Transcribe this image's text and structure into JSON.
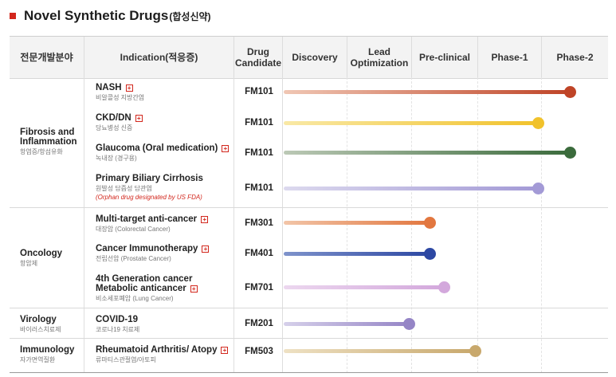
{
  "page": {
    "title": "Novel Synthetic Drugs",
    "title_ko": "(합성신약)"
  },
  "header": {
    "area": "전문개발분야",
    "indication": "Indication(적응증)",
    "candidate_line1": "Drug",
    "candidate_line2": "Candidate",
    "discovery": "Discovery",
    "lead_line1": "Lead",
    "lead_line2": "Optimization",
    "preclinical": "Pre-clinical",
    "phase1": "Phase-1",
    "phase2": "Phase-2"
  },
  "areas": [
    {
      "en_line1": "Fibrosis and",
      "en_line2": "Inflammation",
      "ko": "항염증/항섬유화"
    },
    {
      "en_line1": "Oncology",
      "ko": "항암제"
    },
    {
      "en_line1": "Virology",
      "ko": "바이러스치료제"
    },
    {
      "en_line1": "Immunology",
      "ko": "자가면역질환"
    }
  ],
  "rows": [
    {
      "indication": "NASH",
      "ko": "비알콜성 지방간염",
      "candidate": "FM101",
      "progress_fraction": 1.0,
      "color": "#bf4427",
      "bar_from": "#f0c7b4",
      "has_plus": true
    },
    {
      "indication": "CKD/DN",
      "ko": "당뇨병성 신증",
      "candidate": "FM101",
      "progress_fraction": 0.89,
      "color": "#f1c22b",
      "bar_from": "#f9e9a6",
      "has_plus": true
    },
    {
      "indication": "Glaucoma (Oral medication)",
      "ko": "녹내장 (경구용)",
      "candidate": "FM101",
      "progress_fraction": 1.0,
      "color": "#3b6b3c",
      "bar_from": "#bcc9b6",
      "has_plus": true
    },
    {
      "indication": "Primary Biliary Cirrhosis",
      "ko": "원발성 담즙성 담관염",
      "note": "(Orphan drug designated by US FDA)",
      "candidate": "FM101",
      "progress_fraction": 0.89,
      "color": "#a39ad6",
      "bar_from": "#dcd9ee",
      "has_plus": false
    },
    {
      "indication": "Multi-target anti-cancer",
      "ko": "대장암 (Colorectal Cancer)",
      "candidate": "FM301",
      "progress_fraction": 0.51,
      "color": "#e2773f",
      "bar_from": "#f2c5a8",
      "has_plus": true
    },
    {
      "indication": "Cancer Immunotherapy",
      "ko": "전립선암 (Prostate Cancer)",
      "candidate": "FM401",
      "progress_fraction": 0.51,
      "color": "#2d48a3",
      "bar_from": "#7f93cb",
      "has_plus": true
    },
    {
      "indication_line1": "4th Generation cancer",
      "indication": "Metabolic anticancer",
      "ko": "비소세포폐암 (Lung Cancer)",
      "candidate": "FM701",
      "progress_fraction": 0.56,
      "color": "#d3a8dc",
      "bar_from": "#ecd7ef",
      "has_plus": true
    },
    {
      "indication": "COVID-19",
      "ko": "코로나19 치료제",
      "candidate": "FM201",
      "progress_fraction": 0.44,
      "color": "#9585c6",
      "bar_from": "#d6d0ea",
      "has_plus": false
    },
    {
      "indication": "Rheumatoid Arthritis/ Atopy",
      "ko": "류마티스관절염/아토피",
      "candidate": "FM503",
      "progress_fraction": 0.67,
      "color": "#c8a86c",
      "bar_from": "#eee1c4",
      "has_plus": true
    }
  ],
  "icons": {
    "expand": "plus-square-icon",
    "bullet": "red-square-icon"
  },
  "plus_glyph": "+"
}
